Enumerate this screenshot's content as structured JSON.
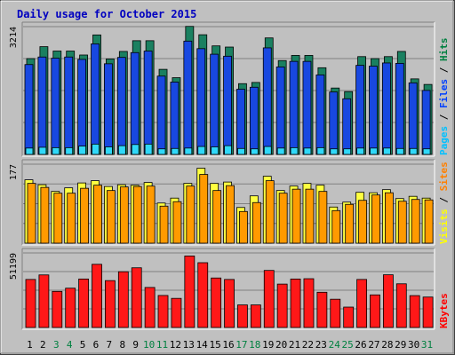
{
  "chart_data": [
    {
      "type": "bar",
      "title": "Daily usage for October 2015",
      "categories": [
        "1",
        "2",
        "3",
        "4",
        "5",
        "6",
        "7",
        "8",
        "9",
        "10",
        "11",
        "12",
        "13",
        "14",
        "15",
        "16",
        "17",
        "18",
        "19",
        "20",
        "21",
        "22",
        "23",
        "24",
        "25",
        "26",
        "27",
        "28",
        "29",
        "30",
        "31"
      ],
      "weekend_days": [
        "3",
        "4",
        "10",
        "11",
        "17",
        "18",
        "24",
        "25",
        "31"
      ],
      "colors": {
        "weekday_label": "#000000",
        "weekend_label": "#008040"
      },
      "panels": [
        {
          "id": "pages-files-hits",
          "ytick_label": "3214",
          "ylim": [
            0,
            3214
          ],
          "legend": [
            {
              "name": "Pages",
              "color": "#00c0ff"
            },
            {
              "name": "Files",
              "color": "#0040ff"
            },
            {
              "name": "Hits",
              "color": "#008040"
            }
          ],
          "legend_separator": " / ",
          "series": [
            {
              "name": "Hits",
              "color": "#1a8060",
              "values": [
                2410,
                2710,
                2600,
                2600,
                2500,
                3005,
                2400,
                2590,
                2860,
                2860,
                2140,
                1930,
                3220,
                3010,
                2730,
                2700,
                1780,
                1810,
                2930,
                2360,
                2490,
                2490,
                2180,
                1670,
                1580,
                2460,
                2410,
                2460,
                2590,
                1900,
                1760
              ]
            },
            {
              "name": "Files",
              "color": "#1848e0",
              "values": [
                2260,
                2450,
                2420,
                2450,
                2390,
                2780,
                2280,
                2440,
                2560,
                2600,
                1970,
                1820,
                2850,
                2660,
                2520,
                2470,
                1640,
                1690,
                2680,
                2200,
                2340,
                2340,
                2000,
                1570,
                1400,
                2240,
                2220,
                2300,
                2290,
                1800,
                1610
              ]
            },
            {
              "name": "Pages",
              "color": "#30d8f8",
              "values": [
                160,
                180,
                170,
                170,
                210,
                260,
                190,
                220,
                250,
                260,
                140,
                150,
                160,
                200,
                190,
                220,
                150,
                140,
                200,
                160,
                170,
                160,
                170,
                140,
                140,
                160,
                160,
                160,
                150,
                150,
                140
              ]
            }
          ]
        },
        {
          "id": "visits-sites",
          "ytick_label": "177",
          "ylim": [
            0,
            177
          ],
          "legend": [
            {
              "name": "Visits",
              "color": "#ffff00"
            },
            {
              "name": "Sites",
              "color": "#ff8000"
            }
          ],
          "legend_separator": " / ",
          "series": [
            {
              "name": "Visits",
              "color": "#ffff40",
              "values": [
                142,
                131,
                116,
                124,
                135,
                140,
                127,
                131,
                130,
                136,
                90,
                101,
                134,
                168,
                134,
                137,
                80,
                106,
                150,
                118,
                128,
                134,
                130,
                81,
                92,
                114,
                113,
                120,
                100,
                105,
                101
              ]
            },
            {
              "name": "Sites",
              "color": "#ff9a00",
              "values": [
                134,
                125,
                112,
                112,
                123,
                130,
                118,
                126,
                127,
                128,
                83,
                93,
                128,
                154,
                118,
                129,
                71,
                91,
                140,
                112,
                121,
                121,
                116,
                73,
                87,
                96,
                108,
                113,
                94,
                98,
                97
              ]
            }
          ]
        },
        {
          "id": "kbytes",
          "ytick_label": "51199",
          "ylim": [
            0,
            51199
          ],
          "legend": [
            {
              "name": "KBytes",
              "color": "#ff0000"
            }
          ],
          "legend_separator": "",
          "series": [
            {
              "name": "KBytes",
              "color": "#ff1818",
              "values": [
                33000,
                36100,
                24800,
                27000,
                33300,
                43400,
                32200,
                38300,
                41000,
                27500,
                22000,
                20000,
                49100,
                44500,
                34000,
                33000,
                15500,
                15500,
                39200,
                29800,
                33300,
                33500,
                24200,
                19400,
                14000,
                33000,
                22400,
                36200,
                30000,
                21900,
                20900
              ]
            }
          ]
        }
      ]
    }
  ]
}
